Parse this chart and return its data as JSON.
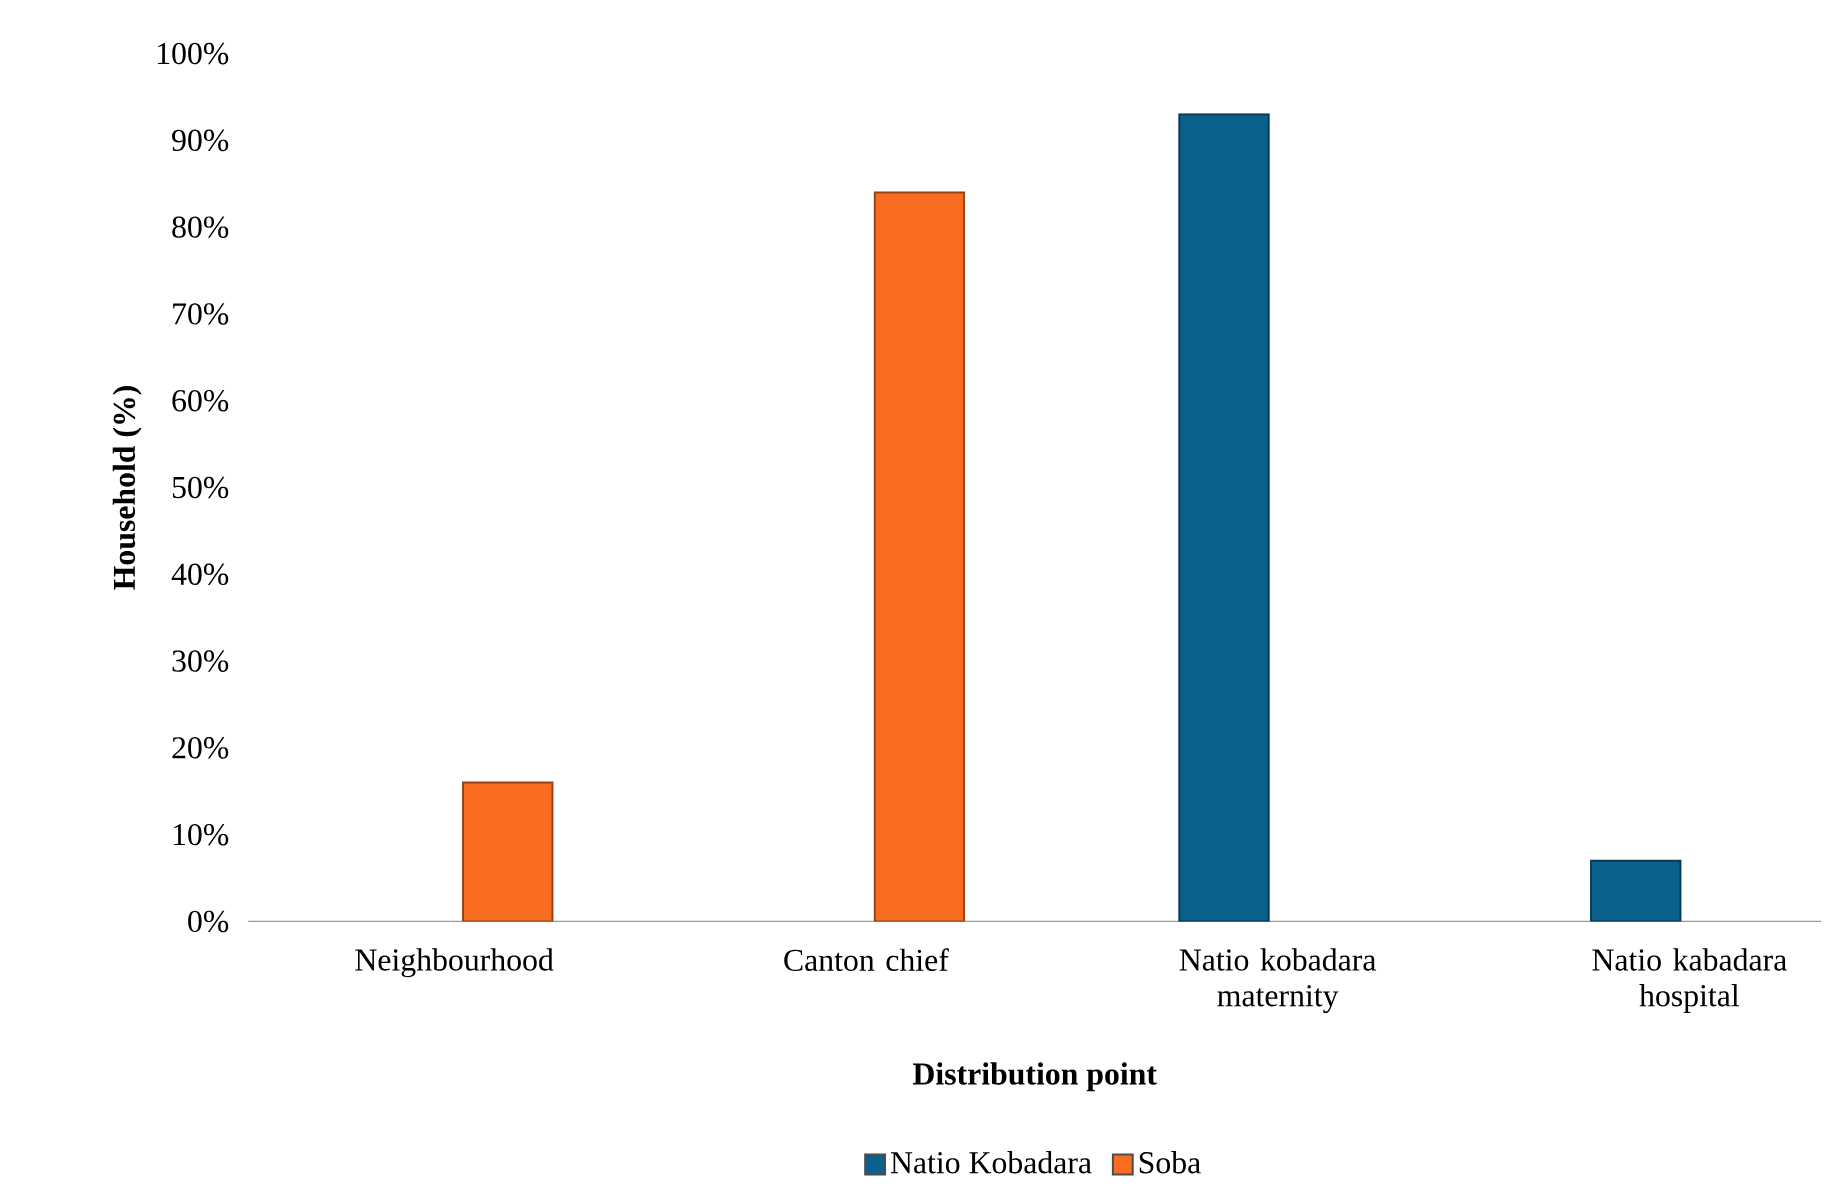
{
  "chart_data": {
    "type": "bar",
    "xlabel": "Distribution point",
    "ylabel": "Household (%)",
    "categories": [
      "Neighbourhood",
      "Canton chief",
      "Natio kobadara maternity",
      "Natio kabadara hospital"
    ],
    "series": [
      {
        "name": "Natio Kobadara",
        "color": "#0a618e",
        "values": [
          null,
          null,
          93,
          7
        ]
      },
      {
        "name": "Soba",
        "color": "#f96d23",
        "values": [
          16,
          84,
          null,
          null
        ]
      }
    ],
    "ylim": [
      0,
      100
    ],
    "yticks": [
      {
        "value": 0,
        "label": "0%"
      },
      {
        "value": 10,
        "label": "10%"
      },
      {
        "value": 20,
        "label": "20%"
      },
      {
        "value": 30,
        "label": "30%"
      },
      {
        "value": 40,
        "label": "40%"
      },
      {
        "value": 50,
        "label": "50%"
      },
      {
        "value": 60,
        "label": "60%"
      },
      {
        "value": 70,
        "label": "70%"
      },
      {
        "value": 80,
        "label": "80%"
      },
      {
        "value": 90,
        "label": "90%"
      },
      {
        "value": 100,
        "label": "100%"
      }
    ],
    "grid": false,
    "legend": "bottom"
  }
}
